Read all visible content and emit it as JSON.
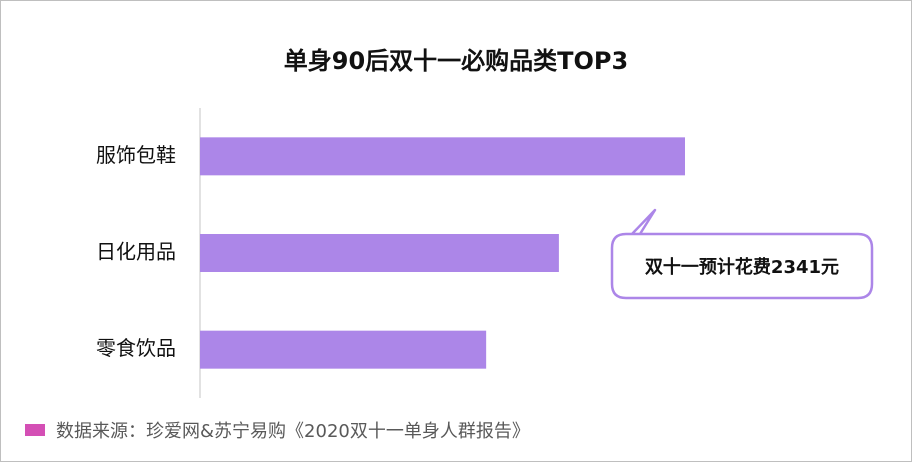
{
  "chart_data": {
    "type": "hbar",
    "title": "单身90后双十一必购品类TOP3",
    "categories": [
      "服饰包鞋",
      "日化用品",
      "零食饮品"
    ],
    "values": [
      100,
      74,
      59
    ],
    "color": "#ac86e8",
    "xlim": [
      0,
      100
    ],
    "annotation": "双十一预计花费2341元",
    "source": "数据来源：珍爱网&苏宁易购《2020双十一单身人群报告》"
  }
}
